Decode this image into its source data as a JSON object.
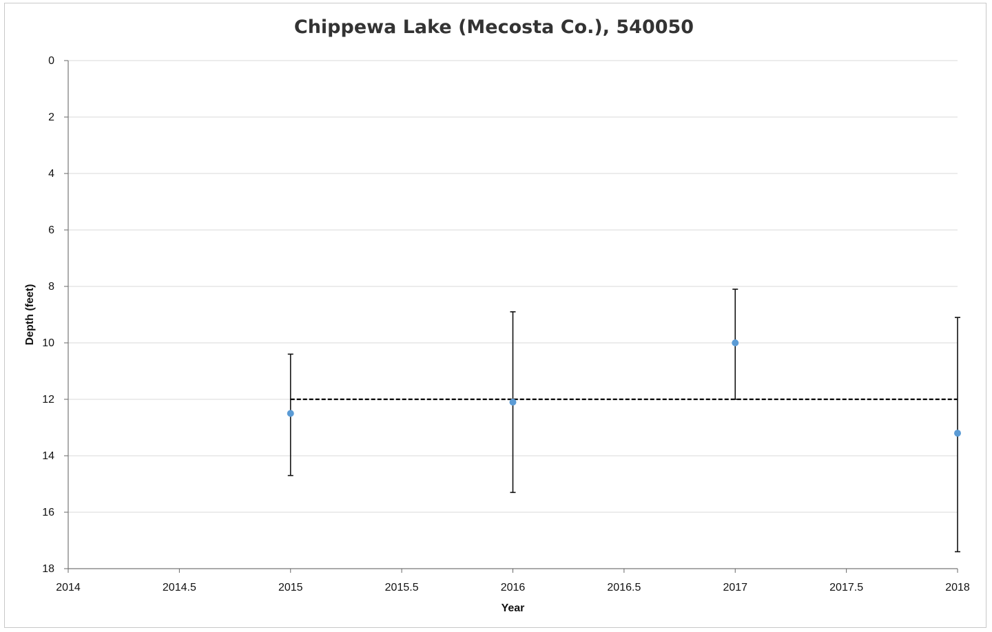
{
  "chart_data": {
    "type": "scatter",
    "title": "Chippewa Lake (Mecosta Co.), 540050",
    "xlabel": "Year",
    "ylabel": "Depth (feet)",
    "xlim": [
      2014,
      2018
    ],
    "ylim": [
      0,
      18
    ],
    "y_inverted": true,
    "grid": "horizontal",
    "x_ticks": [
      "2014",
      "2014.5",
      "2015",
      "2015.5",
      "2016",
      "2016.5",
      "2017",
      "2017.5",
      "2018"
    ],
    "y_ticks": [
      "0",
      "2",
      "4",
      "6",
      "8",
      "10",
      "12",
      "14",
      "16",
      "18"
    ],
    "series": [
      {
        "x": [
          2015,
          2016,
          2017,
          2018
        ],
        "y": [
          12.5,
          12.1,
          10.0,
          13.2
        ],
        "error_low": [
          10.4,
          8.9,
          8.1,
          9.1
        ],
        "error_high": [
          14.7,
          15.3,
          12.0,
          17.4
        ],
        "color": "#5b9bd5"
      }
    ],
    "reference_line": {
      "x_start": 2015,
      "x_end": 2018,
      "y": 12.0,
      "style": "dashed",
      "color": "#000000"
    }
  }
}
